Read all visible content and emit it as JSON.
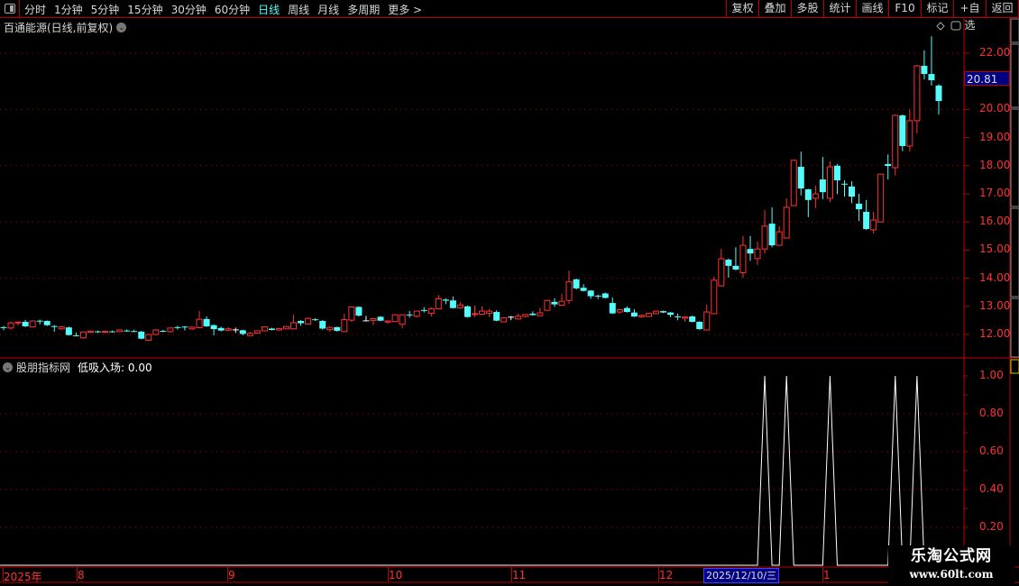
{
  "toolbar": {
    "periods": [
      "分时",
      "1分钟",
      "5分钟",
      "15分钟",
      "30分钟",
      "60分钟",
      "日线",
      "周线",
      "月线",
      "多周期",
      "更多 >"
    ],
    "active_period": "日线",
    "buttons": [
      "复权",
      "叠加",
      "多股",
      "统计",
      "画线",
      "F10",
      "标记",
      "+自选",
      "返回"
    ]
  },
  "main_pane": {
    "title": "百通能源(日线,前复权)",
    "current_price": "20.81",
    "y_labels": [
      "22.00",
      "20.00",
      "19.00",
      "18.00",
      "17.00",
      "16.00",
      "15.00",
      "14.00",
      "13.00",
      "12.00"
    ]
  },
  "indicator_pane": {
    "name": "股朋指标网",
    "value_label": "低吸入场: 0.00",
    "y_labels": [
      "1.00",
      "0.80",
      "0.60",
      "0.40",
      "0.20"
    ]
  },
  "time_axis": {
    "labels": [
      "2025年",
      "8",
      "9",
      "10",
      "11",
      "12",
      "1"
    ],
    "cursor_date": "2025/12/10/三"
  },
  "watermark": {
    "line1": "乐淘公式网",
    "line2": "www.60lt.com"
  },
  "colors": {
    "up": "#ff3232",
    "down": "#54fcfc",
    "doji": "#ffffff",
    "grid": "#c00000",
    "active": "#54fcfc",
    "indicator_line": "#ffffff"
  },
  "chart_data": [
    {
      "type": "candlestick",
      "fields": [
        "open",
        "close",
        "high",
        "low"
      ],
      "ylim": [
        11.7,
        22.7
      ],
      "grid_levels": [
        22,
        20,
        18,
        16,
        14,
        12
      ],
      "candles": [
        [
          12.26,
          12.24,
          12.3,
          12.15
        ],
        [
          12.23,
          12.41,
          12.46,
          12.18
        ],
        [
          12.41,
          12.44,
          12.46,
          12.32
        ],
        [
          12.45,
          12.29,
          12.52,
          12.26
        ],
        [
          12.27,
          12.48,
          12.5,
          12.25
        ],
        [
          12.49,
          12.47,
          12.53,
          12.36
        ],
        [
          12.48,
          12.33,
          12.5,
          12.3
        ],
        [
          12.3,
          12.27,
          12.33,
          12.1
        ],
        [
          12.2,
          12.27,
          12.3,
          12.17
        ],
        [
          12.25,
          11.98,
          12.28,
          11.96
        ],
        [
          11.97,
          11.96,
          12.07,
          11.94
        ],
        [
          11.88,
          12.09,
          12.11,
          11.85
        ],
        [
          12.08,
          12.12,
          12.14,
          12.06
        ],
        [
          12.11,
          12.1,
          12.14,
          12.06
        ],
        [
          12.1,
          12.11,
          12.13,
          12.07
        ],
        [
          12.11,
          12.1,
          12.14,
          12.07
        ],
        [
          12.1,
          12.16,
          12.18,
          12.08
        ],
        [
          12.14,
          12.13,
          12.18,
          12.09
        ],
        [
          12.12,
          12.11,
          12.17,
          12.08
        ],
        [
          12.1,
          11.85,
          12.13,
          11.83
        ],
        [
          11.79,
          12.0,
          12.02,
          11.77
        ],
        [
          12.0,
          12.16,
          12.19,
          11.97
        ],
        [
          12.13,
          12.12,
          12.16,
          12.08
        ],
        [
          12.1,
          12.23,
          12.25,
          12.07
        ],
        [
          12.26,
          12.25,
          12.31,
          12.18
        ],
        [
          12.28,
          12.25,
          12.3,
          12.14
        ],
        [
          12.2,
          12.26,
          12.29,
          12.16
        ],
        [
          12.24,
          12.54,
          12.83,
          12.22
        ],
        [
          12.55,
          12.29,
          12.64,
          12.27
        ],
        [
          12.33,
          12.19,
          12.36,
          11.97
        ],
        [
          12.23,
          12.14,
          12.28,
          12.11
        ],
        [
          12.15,
          12.2,
          12.26,
          12.12
        ],
        [
          12.18,
          12.18,
          12.24,
          12.06
        ],
        [
          12.15,
          12.02,
          12.17,
          11.97
        ],
        [
          11.96,
          12.04,
          12.09,
          11.94
        ],
        [
          12.05,
          12.13,
          12.15,
          12.03
        ],
        [
          12.13,
          12.27,
          12.29,
          12.11
        ],
        [
          12.21,
          12.16,
          12.24,
          12.14
        ],
        [
          12.16,
          12.21,
          12.23,
          12.14
        ],
        [
          12.2,
          12.28,
          12.3,
          12.18
        ],
        [
          12.2,
          12.42,
          12.7,
          12.18
        ],
        [
          12.48,
          12.4,
          12.51,
          12.31
        ],
        [
          12.37,
          12.57,
          12.6,
          12.35
        ],
        [
          12.54,
          12.53,
          12.58,
          12.48
        ],
        [
          12.48,
          12.21,
          12.51,
          12.17
        ],
        [
          12.17,
          12.25,
          12.28,
          12.1
        ],
        [
          12.26,
          12.13,
          12.28,
          12.1
        ],
        [
          12.1,
          12.53,
          12.73,
          12.08
        ],
        [
          12.51,
          12.98,
          13.0,
          12.45
        ],
        [
          12.98,
          12.67,
          13.0,
          12.64
        ],
        [
          12.5,
          12.5,
          12.66,
          12.48
        ],
        [
          12.5,
          12.56,
          12.58,
          12.33
        ],
        [
          12.63,
          12.49,
          12.65,
          12.47
        ],
        [
          12.44,
          12.48,
          12.5,
          12.38
        ],
        [
          12.46,
          12.7,
          12.72,
          12.44
        ],
        [
          12.36,
          12.7,
          12.72,
          12.22
        ],
        [
          12.71,
          12.7,
          12.84,
          12.6
        ],
        [
          12.65,
          12.83,
          12.85,
          12.6
        ],
        [
          12.87,
          12.86,
          12.97,
          12.78
        ],
        [
          12.75,
          12.92,
          12.97,
          12.64
        ],
        [
          12.91,
          13.27,
          13.4,
          12.89
        ],
        [
          13.24,
          13.2,
          13.29,
          13.08
        ],
        [
          13.21,
          12.94,
          13.35,
          12.92
        ],
        [
          12.94,
          13.05,
          13.15,
          12.92
        ],
        [
          13.0,
          12.62,
          13.03,
          12.6
        ],
        [
          12.73,
          12.74,
          13.03,
          12.62
        ],
        [
          12.72,
          12.83,
          13.0,
          12.7
        ],
        [
          12.75,
          12.83,
          12.9,
          12.62
        ],
        [
          12.8,
          12.49,
          12.86,
          12.47
        ],
        [
          12.45,
          12.59,
          12.61,
          12.43
        ],
        [
          12.63,
          12.63,
          12.66,
          12.51
        ],
        [
          12.55,
          12.65,
          12.74,
          12.53
        ],
        [
          12.64,
          12.71,
          12.73,
          12.61
        ],
        [
          12.74,
          12.69,
          12.82,
          12.67
        ],
        [
          12.67,
          12.77,
          12.95,
          12.65
        ],
        [
          12.86,
          13.21,
          13.24,
          12.84
        ],
        [
          13.16,
          13.07,
          13.28,
          12.98
        ],
        [
          13.04,
          13.18,
          13.45,
          13.02
        ],
        [
          13.21,
          13.88,
          14.27,
          13.08
        ],
        [
          13.96,
          13.64,
          13.99,
          13.6
        ],
        [
          13.66,
          13.55,
          13.79,
          13.53
        ],
        [
          13.56,
          13.36,
          13.58,
          13.27
        ],
        [
          13.38,
          13.37,
          13.42,
          13.26
        ],
        [
          13.46,
          13.3,
          13.49,
          13.28
        ],
        [
          13.12,
          12.75,
          13.32,
          12.73
        ],
        [
          12.8,
          12.88,
          12.9,
          12.74
        ],
        [
          12.94,
          12.8,
          13.0,
          12.78
        ],
        [
          12.78,
          12.64,
          12.9,
          12.62
        ],
        [
          12.63,
          12.68,
          12.7,
          12.59
        ],
        [
          12.64,
          12.75,
          12.77,
          12.62
        ],
        [
          12.74,
          12.83,
          12.85,
          12.72
        ],
        [
          12.83,
          12.78,
          12.85,
          12.76
        ],
        [
          12.78,
          12.7,
          12.8,
          12.61
        ],
        [
          12.64,
          12.63,
          12.74,
          12.51
        ],
        [
          12.58,
          12.62,
          12.64,
          12.45
        ],
        [
          12.64,
          12.45,
          12.67,
          12.43
        ],
        [
          12.45,
          12.19,
          12.47,
          12.17
        ],
        [
          12.16,
          12.8,
          13.06,
          12.14
        ],
        [
          12.74,
          13.93,
          14.05,
          12.72
        ],
        [
          13.73,
          14.69,
          15.04,
          13.7
        ],
        [
          14.66,
          14.44,
          14.7,
          14.02
        ],
        [
          14.44,
          14.31,
          15.1,
          14.28
        ],
        [
          14.2,
          15.17,
          15.5,
          14.02
        ],
        [
          15.04,
          14.88,
          15.5,
          14.62
        ],
        [
          14.7,
          15.04,
          15.3,
          14.47
        ],
        [
          15.04,
          15.85,
          16.42,
          14.88
        ],
        [
          15.94,
          15.17,
          16.52,
          15.1
        ],
        [
          15.17,
          15.65,
          15.85,
          15.15
        ],
        [
          15.43,
          16.52,
          16.84,
          15.41
        ],
        [
          16.58,
          18.19,
          18.22,
          16.56
        ],
        [
          17.96,
          17.19,
          18.5,
          16.94
        ],
        [
          17.16,
          16.78,
          17.18,
          16.17
        ],
        [
          16.84,
          17.0,
          17.29,
          16.49
        ],
        [
          17.51,
          17.06,
          18.31,
          16.81
        ],
        [
          16.84,
          17.96,
          18.15,
          16.7
        ],
        [
          18.0,
          17.48,
          18.06,
          16.99
        ],
        [
          17.36,
          17.35,
          17.48,
          16.9
        ],
        [
          17.26,
          16.9,
          17.45,
          16.67
        ],
        [
          16.65,
          16.45,
          17.0,
          16.03
        ],
        [
          16.36,
          15.75,
          16.78,
          15.72
        ],
        [
          15.72,
          16.07,
          16.36,
          15.59
        ],
        [
          16.0,
          17.7,
          17.72,
          15.98
        ],
        [
          18.06,
          17.99,
          18.4,
          17.51
        ],
        [
          17.93,
          19.79,
          19.82,
          17.65
        ],
        [
          19.79,
          18.7,
          19.82,
          18.52
        ],
        [
          18.7,
          19.6,
          20.0,
          18.5
        ],
        [
          19.6,
          21.55,
          21.58,
          19.15
        ],
        [
          21.55,
          21.26,
          22.1,
          21.07
        ],
        [
          21.26,
          21.04,
          22.6,
          20.85
        ],
        [
          20.85,
          20.3,
          20.9,
          19.82
        ]
      ]
    },
    {
      "type": "line",
      "series_label": "低吸入场",
      "ylim": [
        0,
        1.05
      ],
      "grid_levels": [
        0.8,
        0.6,
        0.4,
        0.2
      ],
      "signal_candle_indices": [
        105,
        108,
        114,
        123,
        126
      ],
      "signal_value": 1.0,
      "baseline_value": 0.0
    }
  ]
}
